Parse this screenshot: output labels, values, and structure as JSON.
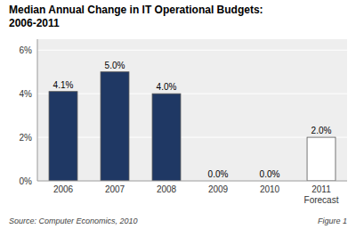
{
  "chart_data": {
    "type": "bar",
    "title": "Median Annual Change in IT Operational Budgets:\n2006-2011",
    "categories": [
      "2006",
      "2007",
      "2008",
      "2009",
      "2010",
      "2011\nForecast"
    ],
    "values": [
      4.1,
      5.0,
      4.0,
      0.0,
      0.0,
      2.0
    ],
    "value_labels": [
      "4.1%",
      "5.0%",
      "4.0%",
      "0.0%",
      "0.0%",
      "2.0%"
    ],
    "data_labels": true,
    "colors": [
      "#1F3864",
      "#1F3864",
      "#1F3864",
      "#1F3864",
      "#1F3864",
      "#ffffff"
    ],
    "ylim": [
      0,
      6.5
    ],
    "yticks": [
      {
        "value": 0,
        "label": "0%"
      },
      {
        "value": 2,
        "label": "2%"
      },
      {
        "value": 4,
        "label": "4%"
      },
      {
        "value": 6,
        "label": "6%"
      }
    ],
    "grid": true,
    "annotations": [
      "Source: Computer Economics, 2010",
      "Figure 1"
    ]
  }
}
